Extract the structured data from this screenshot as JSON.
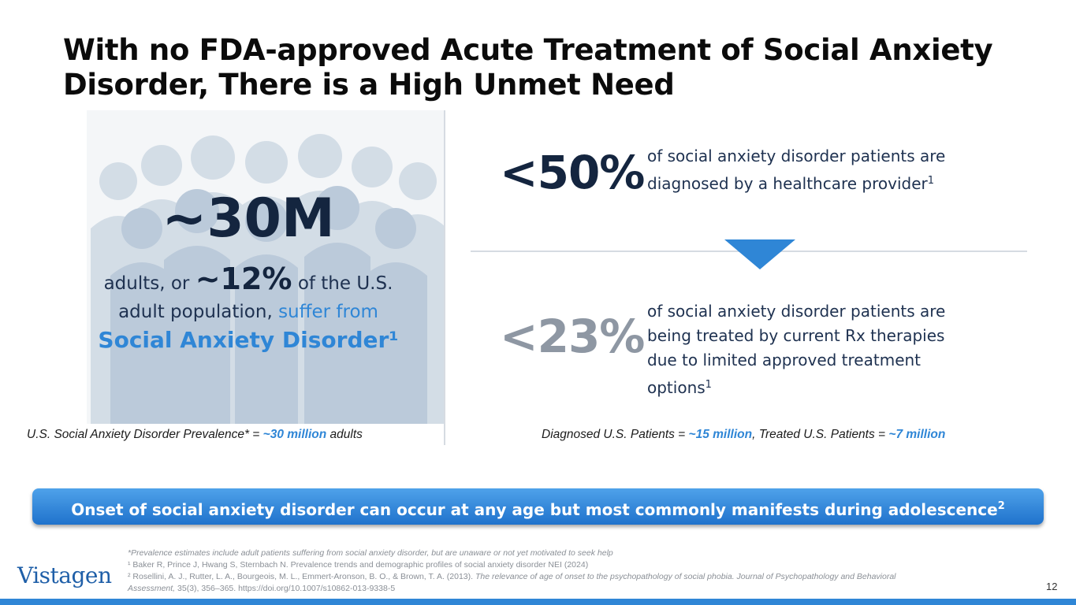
{
  "title": "With no FDA-approved Acute Treatment of Social Anxiety Disorder, There is a High Unmet Need",
  "left": {
    "big_number": "~30M",
    "desc_prefix": "adults, or",
    "pct": "~12%",
    "desc_mid": "of the U.S. adult population,",
    "desc_blue": "suffer from",
    "sad_label": "Social Anxiety Disorder¹",
    "caption_prefix": "U.S. Social Anxiety Disorder Prevalence* =",
    "caption_value": "~30 million",
    "caption_suffix": "adults"
  },
  "right": {
    "stat1_value": "<50%",
    "stat1_desc": "of social anxiety disorder patients are diagnosed by a healthcare provider",
    "stat1_sup": "1",
    "stat2_value": "<23%",
    "stat2_desc": "of social anxiety disorder patients are being treated by current Rx therapies due to limited approved treatment options",
    "stat2_sup": "1",
    "caption_diag_label": "Diagnosed U.S. Patients =",
    "caption_diag_value": "~15 million",
    "caption_treated_label": ", Treated U.S. Patients =",
    "caption_treated_value": "~7 million"
  },
  "banner": {
    "text": "Onset of social anxiety disorder can occur at any age but most commonly manifests during adolescence",
    "sup": "2"
  },
  "footnotes": {
    "fn0": "*Prevalence estimates include adult patients suffering from social anxiety disorder, but are unaware or not yet motivated to seek help",
    "fn1": "¹ Baker R, Prince J, Hwang S, Sternbach N. Prevalence trends and demographic profiles of social anxiety disorder NEI (2024)",
    "fn2_prefix": "² Rosellini, A. J., Rutter, L. A., Bourgeois, M. L., Emmert-Aronson, B. O., & Brown, T. A. (2013).",
    "fn2_title": "The relevance of age of onset to the psychopathology of social phobia. Journal of Psychopathology and Behavioral Assessment,",
    "fn2_suffix": "35(3), 356–365. https://doi.org/10.1007/s10862-013-9338-5"
  },
  "logo": "Vistagen",
  "page_number": "12",
  "colors": {
    "accent_blue": "#2f86d6",
    "navy": "#14253f",
    "gray_stat": "#8e97a3",
    "silhouette": "#c3cfdd"
  },
  "icons": {
    "crowd": "people-silhouettes-illustration",
    "divider_arrow": "down-triangle-icon"
  }
}
